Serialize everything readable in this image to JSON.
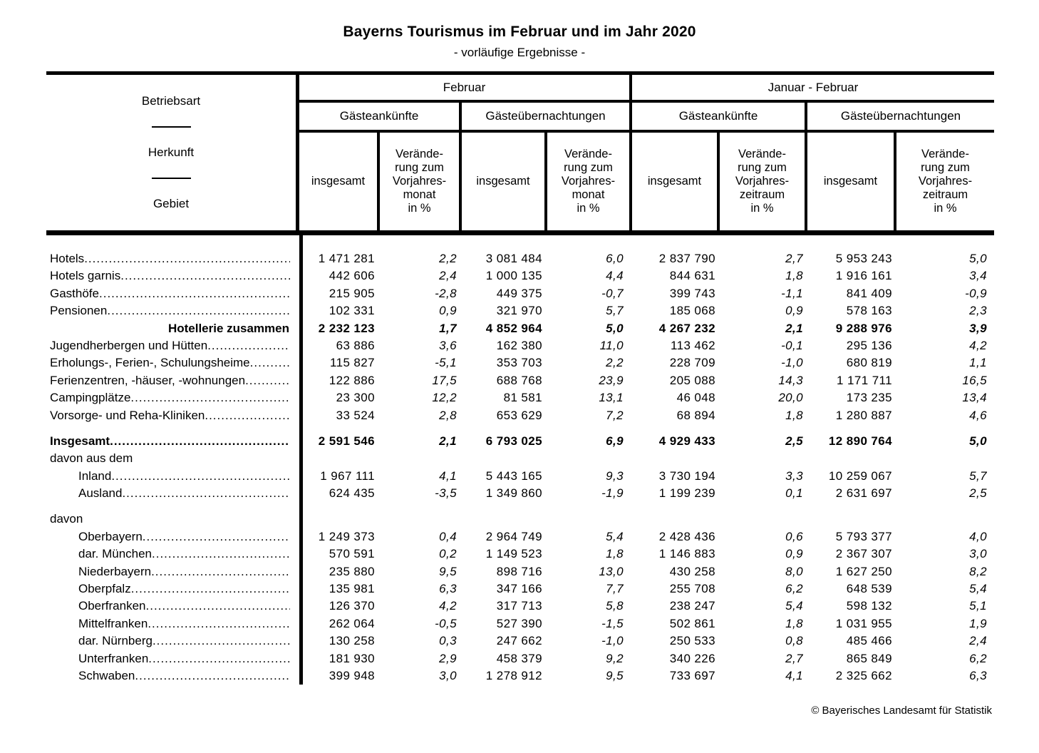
{
  "title": "Bayerns Tourismus im Februar und im Jahr 2020",
  "subtitle": "- vorläufige Ergebnisse -",
  "footer": "© Bayerisches Landesamt für Statistik",
  "header": {
    "stub_labels": [
      "Betriebsart",
      "Herkunft",
      "Gebiet"
    ],
    "periods": [
      "Februar",
      "Januar - Februar"
    ],
    "measures": [
      "Gästeankünfte",
      "Gästeübernachtungen",
      "Gästeankünfte",
      "Gästeübernachtungen"
    ],
    "subcols": [
      "insgesamt",
      "Verände-\nrung zum\nVorjahres-\nmonat\nin %",
      "insgesamt",
      "Verände-\nrung zum\nVorjahres-\nmonat\nin %",
      "insgesamt",
      "Verände-\nrung zum\nVorjahres-\nzeitraum\nin %",
      "insgesamt",
      "Verände-\nrung zum\nVorjahres-\nzeitraum\nin %"
    ]
  },
  "sections": [
    {
      "rows": [
        {
          "label": "Hotels",
          "values": [
            "1 471 281",
            "2,2",
            "3 081 484",
            "6,0",
            "2 837 790",
            "2,7",
            "5 953 243",
            "5,0"
          ]
        },
        {
          "label": "Hotels garnis",
          "values": [
            "442 606",
            "2,4",
            "1 000 135",
            "4,4",
            "844 631",
            "1,8",
            "1 916 161",
            "3,4"
          ]
        },
        {
          "label": "Gasthöfe",
          "values": [
            "215 905",
            "-2,8",
            "449 375",
            "-0,7",
            "399 743",
            "-1,1",
            "841 409",
            "-0,9"
          ]
        },
        {
          "label": "Pensionen",
          "values": [
            "102 331",
            "0,9",
            "321 970",
            "5,7",
            "185 068",
            "0,9",
            "578 163",
            "2,3"
          ]
        },
        {
          "label": "Hotellerie zusammen",
          "style": "sum",
          "values": [
            "2 232 123",
            "1,7",
            "4 852 964",
            "5,0",
            "4 267 232",
            "2,1",
            "9 288 976",
            "3,9"
          ]
        },
        {
          "label": "Jugendherbergen und Hütten",
          "values": [
            "63 886",
            "3,6",
            "162 380",
            "11,0",
            "113 462",
            "-0,1",
            "295 136",
            "4,2"
          ]
        },
        {
          "label": "Erholungs-, Ferien-, Schulungsheime",
          "values": [
            "115 827",
            "-5,1",
            "353 703",
            "2,2",
            "228 709",
            "-1,0",
            "680 819",
            "1,1"
          ]
        },
        {
          "label": "Ferienzentren, -häuser, -wohnungen",
          "values": [
            "122 886",
            "17,5",
            "688 768",
            "23,9",
            "205 088",
            "14,3",
            "1 171 711",
            "16,5"
          ]
        },
        {
          "label": "Campingplätze",
          "values": [
            "23 300",
            "12,2",
            "81 581",
            "13,1",
            "46 048",
            "20,0",
            "173 235",
            "13,4"
          ]
        },
        {
          "label": "Vorsorge- und Reha-Kliniken",
          "values": [
            "33 524",
            "2,8",
            "653 629",
            "7,2",
            "68 894",
            "1,8",
            "1 280 887",
            "4,6"
          ]
        }
      ]
    },
    {
      "rows": [
        {
          "label": "Insgesamt",
          "style": "total",
          "values": [
            "2 591 546",
            "2,1",
            "6 793 025",
            "6,9",
            "4 929 433",
            "2,5",
            "12 890 764",
            "5,0"
          ]
        },
        {
          "label": "davon aus dem",
          "style": "plain"
        },
        {
          "label": "Inland",
          "indent": 1,
          "values": [
            "1 967 111",
            "4,1",
            "5 443 165",
            "9,3",
            "3 730 194",
            "3,3",
            "10 259 067",
            "5,7"
          ]
        },
        {
          "label": "Ausland",
          "indent": 1,
          "values": [
            "624 435",
            "-3,5",
            "1 349 860",
            "-1,9",
            "1 199 239",
            "0,1",
            "2 631 697",
            "2,5"
          ]
        }
      ]
    },
    {
      "rows": [
        {
          "label": "davon",
          "style": "plain"
        },
        {
          "label": "Oberbayern",
          "indent": 1,
          "values": [
            "1 249 373",
            "0,4",
            "2 964 749",
            "5,4",
            "2 428 436",
            "0,6",
            "5 793 377",
            "4,0"
          ]
        },
        {
          "label": "dar. München",
          "indent": 1,
          "values": [
            "570 591",
            "0,2",
            "1 149 523",
            "1,8",
            "1 146 883",
            "0,9",
            "2 367 307",
            "3,0"
          ]
        },
        {
          "label": "Niederbayern",
          "indent": 1,
          "values": [
            "235 880",
            "9,5",
            "898 716",
            "13,0",
            "430 258",
            "8,0",
            "1 627 250",
            "8,2"
          ]
        },
        {
          "label": "Oberpfalz",
          "indent": 1,
          "values": [
            "135 981",
            "6,3",
            "347 166",
            "7,7",
            "255 708",
            "6,2",
            "648 539",
            "5,4"
          ]
        },
        {
          "label": "Oberfranken",
          "indent": 1,
          "values": [
            "126 370",
            "4,2",
            "317 713",
            "5,8",
            "238 247",
            "5,4",
            "598 132",
            "5,1"
          ]
        },
        {
          "label": "Mittelfranken",
          "indent": 1,
          "values": [
            "262 064",
            "-0,5",
            "527 390",
            "-1,5",
            "502 861",
            "1,8",
            "1 031 955",
            "1,9"
          ]
        },
        {
          "label": "dar. Nürnberg",
          "indent": 1,
          "values": [
            "130 258",
            "0,3",
            "247 662",
            "-1,0",
            "250 533",
            "0,8",
            "485 466",
            "2,4"
          ]
        },
        {
          "label": "Unterfranken",
          "indent": 1,
          "values": [
            "181 930",
            "2,9",
            "458 379",
            "9,2",
            "340 226",
            "2,7",
            "865 849",
            "6,2"
          ]
        },
        {
          "label": "Schwaben",
          "indent": 1,
          "values": [
            "399 948",
            "3,0",
            "1 278 912",
            "9,5",
            "733 697",
            "4,1",
            "2 325 662",
            "6,3"
          ]
        }
      ]
    }
  ]
}
